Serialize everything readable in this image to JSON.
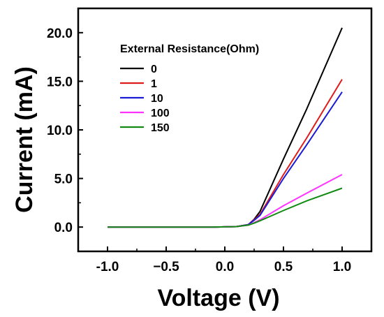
{
  "chart_data": {
    "type": "line",
    "xlabel": "Voltage (V)",
    "ylabel": "Current (mA)",
    "xlim": [
      -1.25,
      1.25
    ],
    "ylim": [
      -2.5,
      22.5
    ],
    "xticks": [
      -1.0,
      -0.5,
      0.0,
      0.5,
      1.0
    ],
    "xtick_labels": [
      "-1.0",
      "−0.5",
      "0.0",
      "0.5",
      "1.0"
    ],
    "yticks": [
      0.0,
      5.0,
      10.0,
      15.0,
      20.0
    ],
    "ytick_labels": [
      "0.0",
      "5.0",
      "10.0",
      "15.0",
      "20.0"
    ],
    "grid": false,
    "legend": {
      "title": "External Resistance(Ohm)",
      "placement": "top-left"
    },
    "series": [
      {
        "name": "0",
        "color": "#000000",
        "x": [
          -1.0,
          -0.1,
          0.1,
          0.2,
          0.25,
          0.3,
          0.5,
          0.7,
          1.0
        ],
        "y": [
          0.0,
          0.0,
          0.05,
          0.25,
          0.8,
          1.6,
          7.0,
          12.2,
          20.5
        ]
      },
      {
        "name": "1",
        "color": "#e01b1b",
        "x": [
          -1.0,
          -0.1,
          0.1,
          0.2,
          0.25,
          0.3,
          0.5,
          0.7,
          1.0
        ],
        "y": [
          0.0,
          0.0,
          0.05,
          0.25,
          0.75,
          1.3,
          5.4,
          9.2,
          15.2
        ]
      },
      {
        "name": "10",
        "color": "#1b1bd6",
        "x": [
          -1.0,
          -0.1,
          0.1,
          0.2,
          0.25,
          0.3,
          0.5,
          0.7,
          1.0
        ],
        "y": [
          0.0,
          0.0,
          0.05,
          0.25,
          0.7,
          1.2,
          5.0,
          8.5,
          13.9
        ]
      },
      {
        "name": "100",
        "color": "#ff33ff",
        "x": [
          -1.0,
          -0.1,
          0.1,
          0.2,
          0.25,
          0.3,
          0.5,
          0.7,
          1.0
        ],
        "y": [
          0.0,
          0.0,
          0.05,
          0.2,
          0.45,
          0.75,
          2.2,
          3.5,
          5.4
        ]
      },
      {
        "name": "150",
        "color": "#138a13",
        "x": [
          -1.0,
          -0.1,
          0.1,
          0.2,
          0.25,
          0.3,
          0.5,
          0.7,
          1.0
        ],
        "y": [
          0.0,
          0.0,
          0.05,
          0.2,
          0.4,
          0.65,
          1.7,
          2.7,
          4.0
        ]
      }
    ]
  }
}
